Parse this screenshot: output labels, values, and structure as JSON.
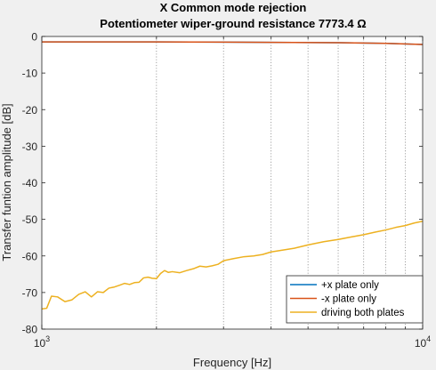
{
  "window": {
    "background": "#f0f0f0"
  },
  "chart_data": {
    "type": "line",
    "title": "X Common mode rejection",
    "subtitle": "Potentiometer wiper-ground resistance 7773.4 Ω",
    "xlabel": "Frequency [Hz]",
    "ylabel": "Transfer funtion amplitude [dB]",
    "xscale": "log",
    "xlim": [
      1000,
      10000
    ],
    "ylim": [
      -80,
      0
    ],
    "x_ticks": [
      {
        "value": 1000,
        "base": "10",
        "exp": "3"
      },
      {
        "value": 10000,
        "base": "10",
        "exp": "4"
      }
    ],
    "y_ticks": [
      0,
      -10,
      -20,
      -30,
      -40,
      -50,
      -60,
      -70,
      -80
    ],
    "grid": "vertical dotted at minor log frequencies",
    "legend_position": "bottom-right",
    "series": [
      {
        "name": "+x plate only",
        "color": "#0072bd",
        "x": [
          1000,
          2000,
          4000,
          6000,
          8000,
          10000
        ],
        "y": [
          -1.5,
          -1.5,
          -1.6,
          -1.7,
          -1.9,
          -2.2
        ]
      },
      {
        "name": "-x plate only",
        "color": "#d95319",
        "x": [
          1000,
          2000,
          4000,
          6000,
          8000,
          10000
        ],
        "y": [
          -1.5,
          -1.5,
          -1.6,
          -1.7,
          -1.9,
          -2.2
        ]
      },
      {
        "name": "driving both plates",
        "color": "#edb120",
        "x": [
          1000,
          1030,
          1060,
          1100,
          1150,
          1200,
          1250,
          1300,
          1350,
          1400,
          1450,
          1500,
          1550,
          1600,
          1650,
          1700,
          1750,
          1800,
          1850,
          1900,
          1950,
          2000,
          2050,
          2100,
          2150,
          2200,
          2300,
          2400,
          2500,
          2600,
          2700,
          2800,
          2900,
          3000,
          3200,
          3400,
          3600,
          3800,
          4000,
          4300,
          4600,
          5000,
          5500,
          6000,
          6500,
          7000,
          7500,
          8000,
          8500,
          9000,
          9500,
          10000
        ],
        "y": [
          -74.5,
          -74.3,
          -71.0,
          -71.2,
          -72.5,
          -72.0,
          -70.5,
          -69.8,
          -71.2,
          -69.8,
          -70.0,
          -68.8,
          -68.5,
          -68.0,
          -67.5,
          -67.8,
          -67.3,
          -67.2,
          -66.0,
          -65.8,
          -66.1,
          -66.2,
          -64.8,
          -64.0,
          -64.5,
          -64.3,
          -64.6,
          -64.0,
          -63.5,
          -62.8,
          -63.0,
          -62.7,
          -62.3,
          -61.3,
          -60.7,
          -60.2,
          -60.0,
          -59.6,
          -58.9,
          -58.4,
          -57.9,
          -57.0,
          -56.1,
          -55.5,
          -54.8,
          -54.2,
          -53.5,
          -52.9,
          -52.2,
          -51.7,
          -51.0,
          -50.5
        ]
      }
    ]
  }
}
